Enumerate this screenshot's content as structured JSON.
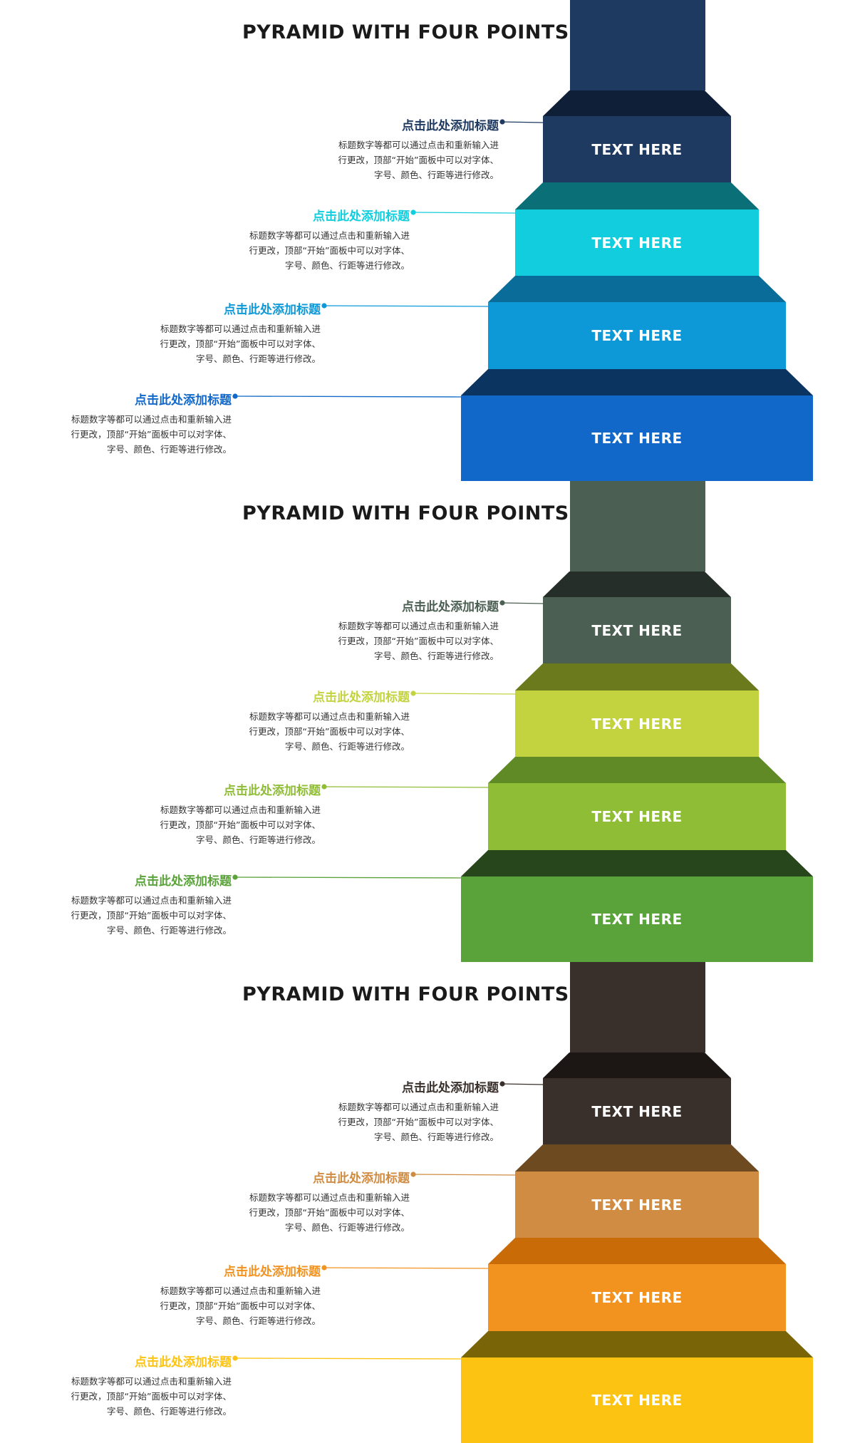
{
  "panels": [
    {
      "title": "PYRAMID WITH FOUR POINTS",
      "colors": {
        "stem": "#1f3a61",
        "steps": [
          {
            "front": "#1f3a61",
            "top": "#0f1f38",
            "accent": "#1f3a61"
          },
          {
            "front": "#12cddd",
            "top": "#0b6f78",
            "accent": "#12cddd"
          },
          {
            "front": "#0d99d8",
            "top": "#0a6c98",
            "accent": "#0d99d8"
          },
          {
            "front": "#1168c8",
            "top": "#0c3460",
            "accent": "#1168c8"
          }
        ]
      },
      "steps": [
        {
          "label": "TEXT HERE",
          "heading": "点击此处添加标题",
          "lines": [
            "标题数字等都可以通过点击和重新输入进",
            "行更改，顶部“开始”面板中可以对字体、",
            "字号、颜色、行距等进行修改。"
          ]
        },
        {
          "label": "TEXT HERE",
          "heading": "点击此处添加标题",
          "lines": [
            "标题数字等都可以通过点击和重新输入进",
            "行更改，顶部“开始”面板中可以对字体、",
            "字号、颜色、行距等进行修改。"
          ]
        },
        {
          "label": "TEXT HERE",
          "heading": "点击此处添加标题",
          "lines": [
            "标题数字等都可以通过点击和重新输入进",
            "行更改，顶部“开始”面板中可以对字体、",
            "字号、颜色、行距等进行修改。"
          ]
        },
        {
          "label": "TEXT HERE",
          "heading": "点击此处添加标题",
          "lines": [
            "标题数字等都可以通过点击和重新输入进",
            "行更改，顶部“开始”面板中可以对字体、",
            "字号、颜色、行距等进行修改。"
          ]
        }
      ]
    },
    {
      "title": "PYRAMID WITH FOUR POINTS",
      "colors": {
        "stem": "#4b5f52",
        "steps": [
          {
            "front": "#4b5f52",
            "top": "#262e29",
            "accent": "#4b5f52"
          },
          {
            "front": "#c3d23f",
            "top": "#6a7a1d",
            "accent": "#c3d23f"
          },
          {
            "front": "#8fbd35",
            "top": "#5f8a26",
            "accent": "#8fbd35"
          },
          {
            "front": "#5aa23a",
            "top": "#28461b",
            "accent": "#5aa23a"
          }
        ]
      },
      "steps": [
        {
          "label": "TEXT HERE",
          "heading": "点击此处添加标题",
          "lines": [
            "标题数字等都可以通过点击和重新输入进",
            "行更改，顶部“开始”面板中可以对字体、",
            "字号、颜色、行距等进行修改。"
          ]
        },
        {
          "label": "TEXT HERE",
          "heading": "点击此处添加标题",
          "lines": [
            "标题数字等都可以通过点击和重新输入进",
            "行更改，顶部“开始”面板中可以对字体、",
            "字号、颜色、行距等进行修改。"
          ]
        },
        {
          "label": "TEXT HERE",
          "heading": "点击此处添加标题",
          "lines": [
            "标题数字等都可以通过点击和重新输入进",
            "行更改，顶部“开始”面板中可以对字体、",
            "字号、颜色、行距等进行修改。"
          ]
        },
        {
          "label": "TEXT HERE",
          "heading": "点击此处添加标题",
          "lines": [
            "标题数字等都可以通过点击和重新输入进",
            "行更改，顶部“开始”面板中可以对字体、",
            "字号、颜色、行距等进行修改。"
          ]
        }
      ]
    },
    {
      "title": "PYRAMID WITH FOUR POINTS",
      "colors": {
        "stem": "#3a302b",
        "steps": [
          {
            "front": "#3a302b",
            "top": "#1c1614",
            "accent": "#3a302b"
          },
          {
            "front": "#cf8c42",
            "top": "#6e4a21",
            "accent": "#cf8c42"
          },
          {
            "front": "#f2921f",
            "top": "#c96c08",
            "accent": "#f2921f"
          },
          {
            "front": "#fcc312",
            "top": "#7a6408",
            "accent": "#fcc312"
          }
        ]
      },
      "steps": [
        {
          "label": "TEXT HERE",
          "heading": "点击此处添加标题",
          "lines": [
            "标题数字等都可以通过点击和重新输入进",
            "行更改，顶部“开始”面板中可以对字体、",
            "字号、颜色、行距等进行修改。"
          ]
        },
        {
          "label": "TEXT HERE",
          "heading": "点击此处添加标题",
          "lines": [
            "标题数字等都可以通过点击和重新输入进",
            "行更改，顶部“开始”面板中可以对字体、",
            "字号、颜色、行距等进行修改。"
          ]
        },
        {
          "label": "TEXT HERE",
          "heading": "点击此处添加标题",
          "lines": [
            "标题数字等都可以通过点击和重新输入进",
            "行更改，顶部“开始”面板中可以对字体、",
            "字号、颜色、行距等进行修改。"
          ]
        },
        {
          "label": "TEXT HERE",
          "heading": "点击此处添加标题",
          "lines": [
            "标题数字等都可以通过点击和重新输入进",
            "行更改，顶部“开始”面板中可以对字体、",
            "字号、颜色、行距等进行修改。"
          ]
        }
      ]
    }
  ]
}
